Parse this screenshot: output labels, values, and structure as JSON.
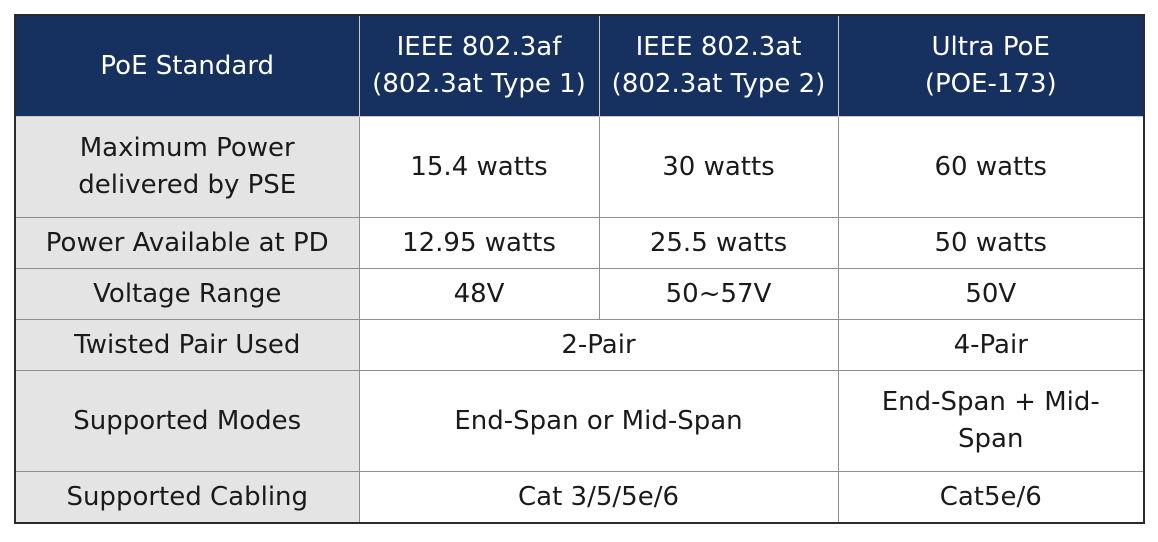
{
  "header": {
    "standard_label": "PoE Standard",
    "af_line1": "IEEE 802.3af",
    "af_line2": "(802.3at Type 1)",
    "at_line1": "IEEE 802.3at",
    "at_line2": "(802.3at Type 2)",
    "ultra_line1": "Ultra PoE",
    "ultra_line2": "(POE-173)"
  },
  "rows": {
    "max_power": {
      "label_line1": "Maximum Power",
      "label_line2": "delivered by PSE",
      "af": "15.4 watts",
      "at": "30 watts",
      "ultra": "60 watts"
    },
    "power_available": {
      "label": "Power Available at PD",
      "af": "12.95 watts",
      "at": "25.5 watts",
      "ultra": "50 watts"
    },
    "voltage_range": {
      "label": "Voltage Range",
      "af": "48V",
      "at": "50~57V",
      "ultra": "50V"
    },
    "twisted_pair": {
      "label": "Twisted Pair Used",
      "af_at": "2-Pair",
      "ultra": "4-Pair"
    },
    "supported_modes": {
      "label": "Supported Modes",
      "af_at": "End-Span or Mid-Span",
      "ultra_line1": "End-Span + Mid-",
      "ultra_line2": "Span"
    },
    "supported_cabling": {
      "label": "Supported Cabling",
      "af_at": "Cat 3/5/5e/6",
      "ultra": "Cat5e/6"
    }
  },
  "colors": {
    "header_bg": "#16305f",
    "header_text": "#ffffff",
    "label_bg": "#e4e4e4",
    "cell_bg": "#ffffff"
  }
}
